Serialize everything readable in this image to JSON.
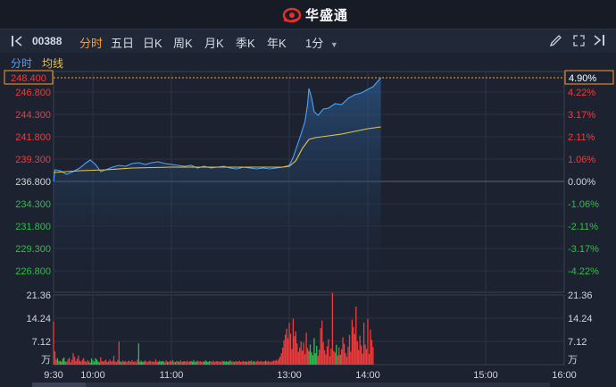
{
  "header": {
    "brand": "华盛通"
  },
  "toolbar": {
    "code": "00388",
    "tabs": [
      "分时",
      "五日",
      "日K",
      "周K",
      "月K",
      "季K",
      "年K"
    ],
    "active_tab": "分时",
    "interval": "1分"
  },
  "subbar": {
    "label_time": "分时",
    "label_avg": "均线"
  },
  "colors": {
    "up": "#f23b3b",
    "down": "#2fbf4a",
    "price": "#4aa3ff",
    "avg": "#e8c34a",
    "accent": "#ff9c2a"
  },
  "chart_data": [
    {
      "type": "line",
      "title": "",
      "x_ticks": [
        "9:30",
        "10:00",
        "11:00",
        "13:00",
        "14:00",
        "15:00",
        "16:00"
      ],
      "y_ticks": [
        246.8,
        244.3,
        241.8,
        239.3,
        236.8,
        234.3,
        231.8,
        229.3,
        226.8
      ],
      "y_tick_labels": [
        "246.800",
        "244.300",
        "241.800",
        "239.300",
        "236.800",
        "234.300",
        "231.800",
        "229.300",
        "226.800"
      ],
      "pct_tick_labels": [
        "4.22%",
        "3.17%",
        "2.11%",
        "1.06%",
        "0.00%",
        "-1.06%",
        "-2.11%",
        "-3.17%",
        "-4.22%"
      ],
      "prev_close": 236.8,
      "last_price": "248.400",
      "last_pct": "4.90%",
      "series": [
        {
          "values": [
            [
              0,
              236.8
            ],
            [
              1,
              238.1
            ],
            [
              5,
              238.0
            ],
            [
              10,
              237.6
            ],
            [
              15,
              237.9
            ],
            [
              20,
              238.3
            ],
            [
              25,
              238.9
            ],
            [
              28,
              239.2
            ],
            [
              32,
              238.7
            ],
            [
              36,
              237.9
            ],
            [
              40,
              238.1
            ],
            [
              45,
              238.4
            ],
            [
              50,
              238.6
            ],
            [
              55,
              238.5
            ],
            [
              60,
              238.8
            ],
            [
              65,
              238.9
            ],
            [
              70,
              238.7
            ],
            [
              75,
              238.9
            ],
            [
              80,
              239.0
            ],
            [
              85,
              238.8
            ],
            [
              90,
              238.7
            ],
            [
              95,
              238.6
            ],
            [
              100,
              238.5
            ],
            [
              105,
              238.6
            ],
            [
              110,
              238.3
            ],
            [
              115,
              238.5
            ],
            [
              120,
              238.3
            ],
            [
              125,
              238.4
            ],
            [
              130,
              238.5
            ],
            [
              135,
              238.3
            ],
            [
              140,
              238.2
            ],
            [
              145,
              238.4
            ],
            [
              150,
              238.3
            ],
            [
              155,
              238.2
            ],
            [
              160,
              238.3
            ],
            [
              165,
              238.2
            ],
            [
              170,
              238.3
            ],
            [
              175,
              238.4
            ],
            [
              180,
              238.6
            ],
            [
              183,
              239.5
            ],
            [
              186,
              240.8
            ],
            [
              189,
              242.1
            ],
            [
              192,
              243.5
            ],
            [
              194,
              245.4
            ],
            [
              195,
              247.2
            ],
            [
              197,
              246.2
            ],
            [
              199,
              244.6
            ],
            [
              202,
              244.2
            ],
            [
              206,
              244.9
            ],
            [
              210,
              245.0
            ],
            [
              215,
              245.5
            ],
            [
              220,
              245.4
            ],
            [
              225,
              246.1
            ],
            [
              230,
              246.5
            ],
            [
              235,
              246.7
            ],
            [
              240,
              247.1
            ],
            [
              244,
              247.4
            ],
            [
              247,
              247.9
            ],
            [
              250,
              248.4
            ]
          ]
        },
        {
          "values": [
            [
              0,
              237.8
            ],
            [
              20,
              238.0
            ],
            [
              40,
              238.1
            ],
            [
              60,
              238.3
            ],
            [
              90,
              238.4
            ],
            [
              120,
              238.4
            ],
            [
              150,
              238.4
            ],
            [
              175,
              238.4
            ],
            [
              180,
              238.5
            ],
            [
              185,
              239.1
            ],
            [
              190,
              240.5
            ],
            [
              195,
              241.5
            ],
            [
              200,
              241.7
            ],
            [
              210,
              241.9
            ],
            [
              220,
              242.1
            ],
            [
              230,
              242.4
            ],
            [
              240,
              242.7
            ],
            [
              250,
              242.9
            ]
          ]
        }
      ]
    },
    {
      "type": "bar",
      "title": "",
      "y_tick_labels": [
        "21.36",
        "14.24",
        "7.12",
        "万"
      ],
      "ylim": [
        0,
        21.36
      ],
      "values": [
        13.2,
        4.1,
        1.5,
        2.0,
        1.2,
        1.1,
        0.9,
        1.8,
        2.2,
        1.0,
        0.8,
        1.6,
        2.1,
        0.7,
        1.5,
        3.5,
        2.4,
        1.1,
        1.8,
        2.8,
        1.2,
        0.9,
        1.5,
        2.0,
        1.1,
        0.8,
        1.4,
        1.0,
        0.6,
        1.9,
        1.3,
        0.9,
        2.0,
        1.6,
        1.0,
        0.7,
        2.3,
        1.1,
        0.9,
        1.2,
        1.5,
        0.8,
        1.0,
        1.6,
        0.9,
        1.2,
        2.7,
        1.0,
        0.8,
        1.4,
        7.0,
        1.0,
        0.8,
        1.3,
        0.9,
        1.1,
        0.7,
        1.2,
        1.0,
        0.9,
        1.4,
        0.8,
        1.1,
        0.7,
        1.5,
        6.5,
        0.9,
        1.2,
        0.8,
        1.0,
        1.3,
        0.9,
        0.8,
        1.2,
        1.1,
        0.9,
        1.0,
        0.8,
        1.6,
        1.0,
        0.8,
        1.2,
        0.9,
        1.1,
        1.0,
        0.7,
        1.3,
        0.9,
        0.8,
        1.2,
        1.0,
        1.4,
        0.9,
        0.8,
        1.1,
        1.0,
        0.9,
        1.3,
        0.8,
        1.0,
        1.1,
        0.9,
        1.2,
        0.8,
        1.0,
        1.1,
        0.9,
        1.4,
        0.8,
        1.0,
        1.2,
        0.9,
        1.1,
        0.8,
        1.0,
        0.9,
        1.3,
        1.0,
        0.8,
        1.1,
        1.0,
        0.9,
        1.2,
        0.8,
        1.0,
        1.1,
        0.9,
        1.0,
        0.8,
        1.2,
        1.0,
        0.9,
        1.1,
        0.8,
        1.0,
        1.3,
        0.9,
        1.0,
        0.8,
        1.1,
        1.0,
        0.9,
        1.2,
        0.8,
        1.0,
        1.1,
        0.9,
        1.0,
        0.8,
        1.2,
        1.0,
        1.3,
        0.9,
        1.1,
        0.8,
        1.0,
        1.2,
        0.9,
        1.0,
        1.1,
        0.8,
        1.0,
        1.2,
        0.9,
        1.1,
        1.0,
        0.8,
        1.0,
        1.3,
        1.1,
        1.5,
        1.2,
        1.8,
        2.5,
        3.5,
        5.2,
        7.5,
        9.2,
        11.0,
        8.1,
        12.8,
        9.5,
        4.8,
        14.1,
        8.7,
        10.2,
        6.5,
        3.9,
        5.2,
        7.1,
        4.3,
        6.8,
        3.2,
        9.8,
        5.1,
        4.2,
        6.2,
        3.8,
        2.9,
        8.1,
        3.5,
        5.8,
        2.7,
        4.6,
        11.2,
        13.5,
        6.9,
        4.4,
        3.1,
        5.6,
        7.8,
        2.6,
        4.9,
        22.0,
        4.2,
        3.7,
        6.1,
        2.8,
        5.3,
        3.0,
        4.7,
        8.4,
        6.4,
        3.6,
        2.4,
        5.5,
        9.1,
        4.0,
        13.8,
        11.6,
        9.4,
        17.8,
        7.2,
        4.5,
        8.9,
        5.9,
        3.4,
        12.9,
        6.2,
        4.8,
        14.0,
        3.3,
        10.8,
        7.6,
        5.4
      ]
    }
  ]
}
